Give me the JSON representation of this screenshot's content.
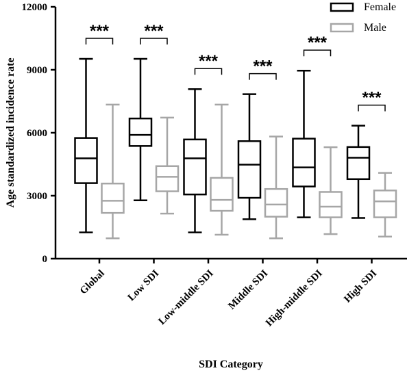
{
  "chart_data": {
    "type": "boxplot",
    "xlabel": "SDI Category",
    "ylabel": "Age standardized incidence rate",
    "ylim": [
      0,
      12000
    ],
    "yticks": [
      "0",
      "3000",
      "6000",
      "9000",
      "12000"
    ],
    "ytick_values": [
      0,
      3000,
      6000,
      9000,
      12000
    ],
    "categories": [
      "Global",
      "Low SDI",
      "Low-middle SDI",
      "Middle SDI",
      "High-middle SDI",
      "High SDI"
    ],
    "series": [
      {
        "name": "Female",
        "color": "#000000",
        "boxes": [
          {
            "min": 1250,
            "q1": 3600,
            "median": 4780,
            "q3": 5750,
            "max": 9520
          },
          {
            "min": 2780,
            "q1": 5370,
            "median": 5900,
            "q3": 6680,
            "max": 9520
          },
          {
            "min": 1250,
            "q1": 3060,
            "median": 4780,
            "q3": 5680,
            "max": 8080
          },
          {
            "min": 1880,
            "q1": 2900,
            "median": 4480,
            "q3": 5600,
            "max": 7840
          },
          {
            "min": 1970,
            "q1": 3440,
            "median": 4350,
            "q3": 5720,
            "max": 8960
          },
          {
            "min": 1940,
            "q1": 3790,
            "median": 4810,
            "q3": 5320,
            "max": 6340
          }
        ]
      },
      {
        "name": "Male",
        "color": "#a6a6a6",
        "boxes": [
          {
            "min": 970,
            "q1": 2180,
            "median": 2760,
            "q3": 3580,
            "max": 7340
          },
          {
            "min": 2150,
            "q1": 3210,
            "median": 3900,
            "q3": 4410,
            "max": 6720
          },
          {
            "min": 1140,
            "q1": 2280,
            "median": 2800,
            "q3": 3850,
            "max": 7340
          },
          {
            "min": 970,
            "q1": 2000,
            "median": 2580,
            "q3": 3320,
            "max": 5820
          },
          {
            "min": 1170,
            "q1": 1970,
            "median": 2480,
            "q3": 3180,
            "max": 5310
          },
          {
            "min": 1050,
            "q1": 1970,
            "median": 2730,
            "q3": 3250,
            "max": 4090
          }
        ]
      }
    ],
    "significance": [
      "***",
      "***",
      "***",
      "***",
      "***",
      "***"
    ],
    "grid": false,
    "legend_position": "top-right"
  }
}
